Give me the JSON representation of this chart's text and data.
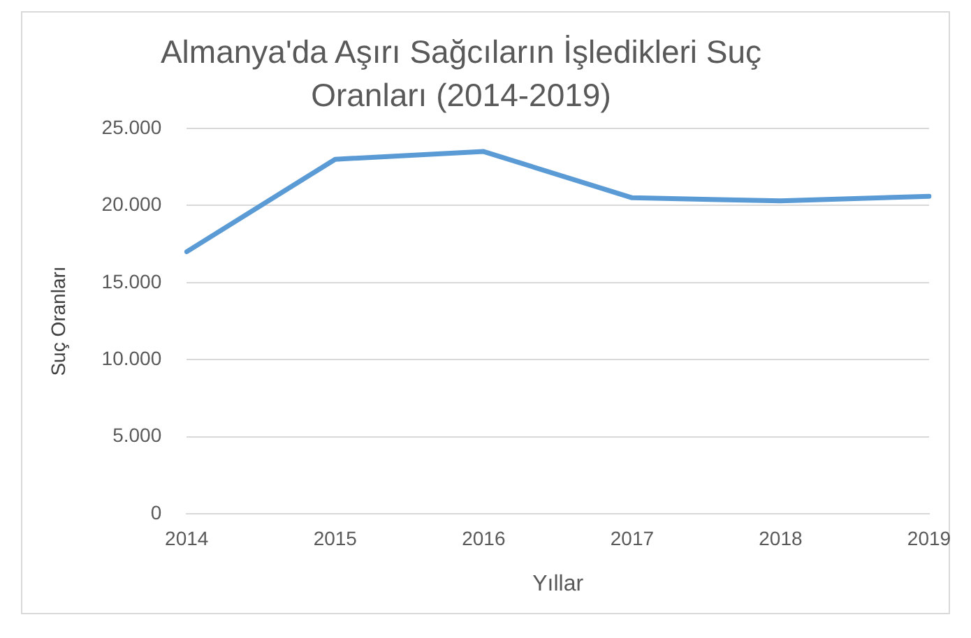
{
  "chart_data": {
    "type": "line",
    "title": "Almanya'da Aşırı Sağcıların İşledikleri Suç Oranları (2014-2019)",
    "xlabel": "Yıllar",
    "ylabel": "Suç Oranları",
    "categories": [
      "2014",
      "2015",
      "2016",
      "2017",
      "2018",
      "2019"
    ],
    "series": [
      {
        "color": "#5b9bd5",
        "values": [
          17000,
          23000,
          23500,
          20500,
          20300,
          20600
        ]
      }
    ],
    "ylim": [
      0,
      25000
    ],
    "yticks": [
      {
        "value": 0,
        "label": "0"
      },
      {
        "value": 5000,
        "label": "5.000"
      },
      {
        "value": 10000,
        "label": "10.000"
      },
      {
        "value": 15000,
        "label": "15.000"
      },
      {
        "value": 20000,
        "label": "20.000"
      },
      {
        "value": 25000,
        "label": "25.000"
      }
    ],
    "grid": "y",
    "legend": false,
    "marker": "none",
    "line_style": "solid"
  }
}
